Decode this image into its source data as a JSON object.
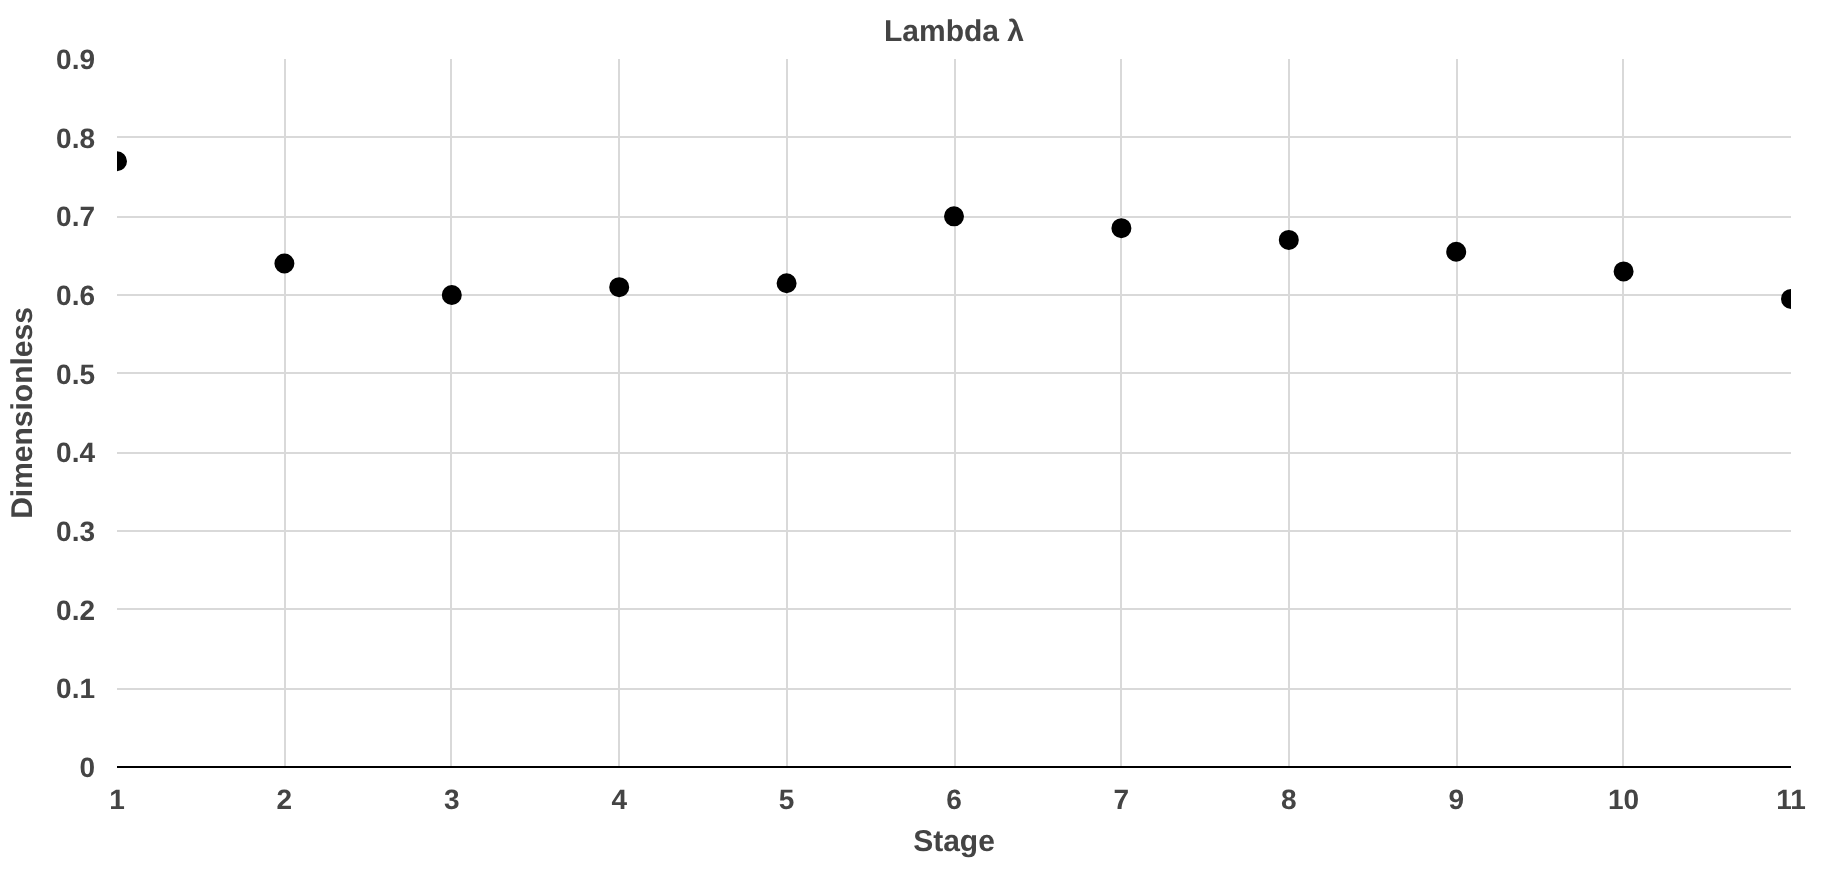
{
  "chart_data": {
    "type": "scatter",
    "title": "Lambda λ",
    "xlabel": "Stage",
    "ylabel": "Dimensionless",
    "x": [
      1,
      2,
      3,
      4,
      5,
      6,
      7,
      8,
      9,
      10,
      11
    ],
    "series": [
      {
        "color": "#000000",
        "values": [
          0.77,
          0.64,
          0.6,
          0.61,
          0.615,
          0.7,
          0.685,
          0.67,
          0.655,
          0.63,
          0.595
        ]
      }
    ],
    "xlim": [
      1,
      11
    ],
    "xticks": [
      1,
      2,
      3,
      4,
      5,
      6,
      7,
      8,
      9,
      10,
      11
    ],
    "ylim": [
      0,
      0.9
    ],
    "yticks": [
      {
        "value": 0,
        "label": "0"
      },
      0.1,
      0.2,
      0.3,
      0.4,
      0.5,
      0.6,
      0.7,
      0.8,
      0.9
    ],
    "grid": true,
    "marker": "circle"
  }
}
